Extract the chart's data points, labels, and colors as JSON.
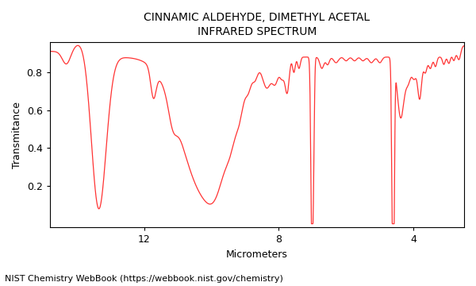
{
  "title_line1": "CINNAMIC ALDEHYDE, DIMETHYL ACETAL",
  "title_line2": "INFRARED SPECTRUM",
  "xlabel": "Micrometers",
  "ylabel": "Transmitance",
  "footnote": "NIST Chemistry WebBook (https://webbook.nist.gov/chemistry)",
  "xmin": 2.5,
  "xmax": 14.5,
  "ymin": -0.02,
  "ymax": 0.96,
  "xticks": [
    12,
    8,
    4
  ],
  "line_color": "#ff3333",
  "background_color": "#ffffff",
  "title_fontsize": 10,
  "axis_label_fontsize": 9,
  "footnote_fontsize": 8,
  "tick_fontsize": 9,
  "linewidth": 0.9
}
